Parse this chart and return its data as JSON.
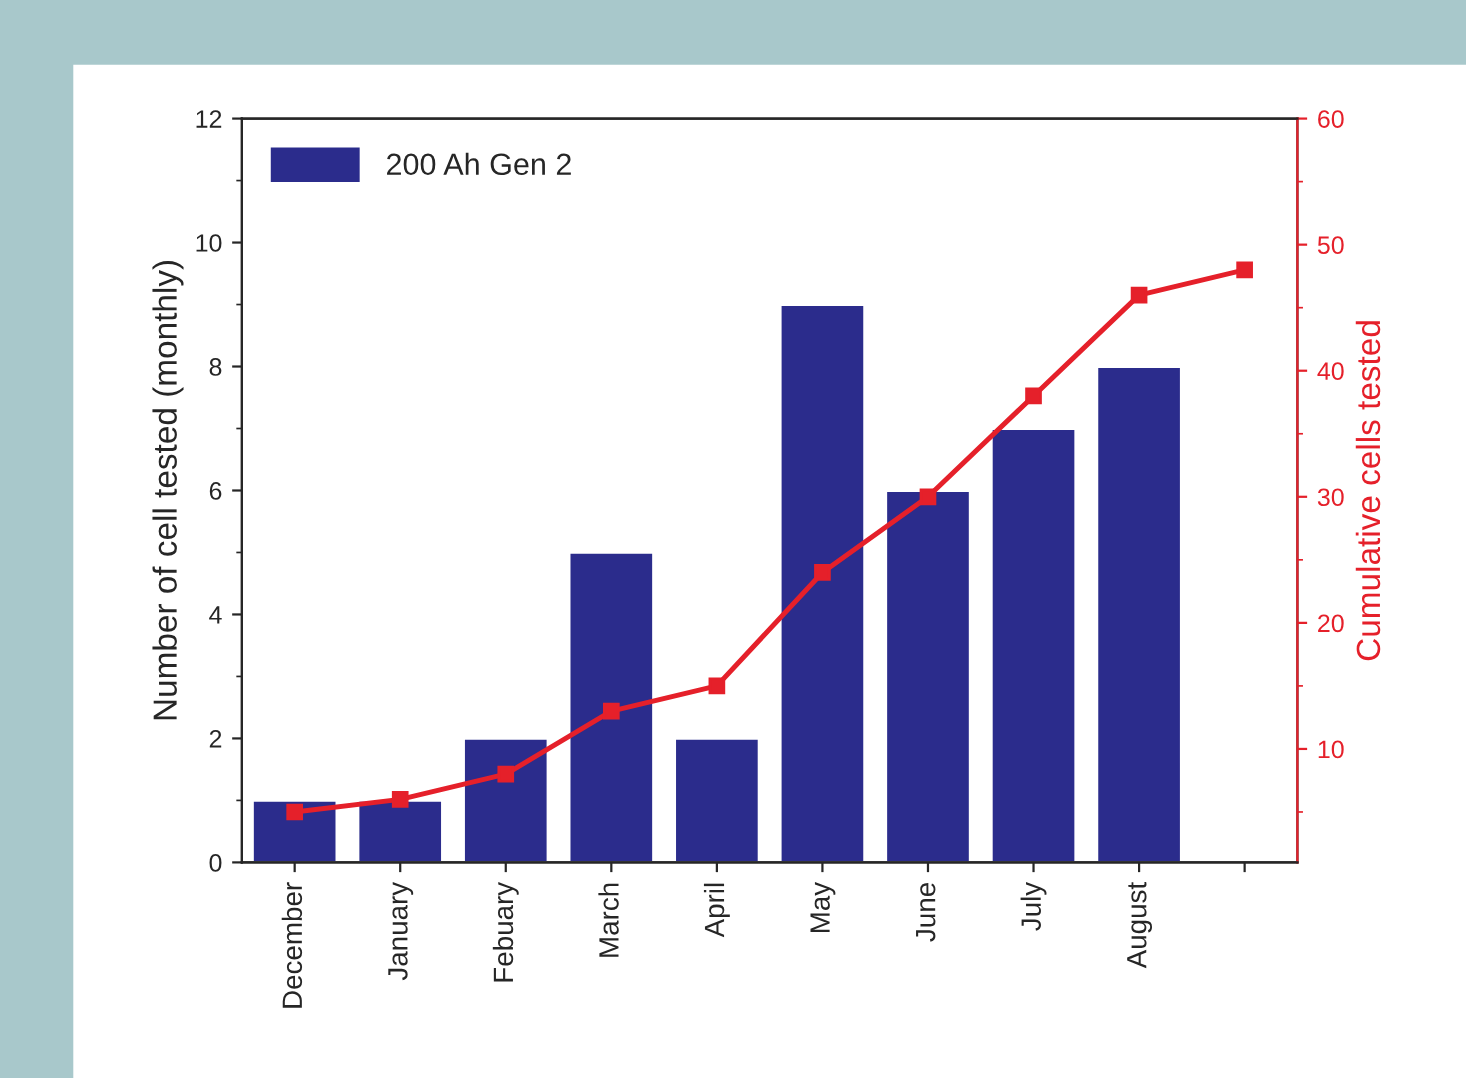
{
  "chart_data": {
    "type": "bar",
    "ylabel": "Number of cell tested (monthly)",
    "y2label": "Cumulative cells tested",
    "categories": [
      "December",
      "January",
      "Febuary",
      "March",
      "April",
      "May",
      "June",
      "July",
      "August",
      null
    ],
    "series": [
      {
        "name": "200 Ah Gen 2",
        "color": "#2b2c8c",
        "values": [
          1,
          1,
          2,
          5,
          2,
          9,
          6,
          7,
          8,
          null
        ]
      },
      {
        "type": "line",
        "axis": "y2",
        "color": "#e5202a",
        "marker": "square",
        "values": [
          5,
          6,
          8,
          13,
          15,
          24,
          30,
          38,
          46,
          48
        ]
      }
    ],
    "ylim": [
      0,
      12
    ],
    "yticks": [
      0,
      2,
      4,
      6,
      8,
      10,
      12
    ],
    "y2lim": [
      1,
      60
    ],
    "y2ticks": [
      10,
      20,
      30,
      40,
      50,
      60
    ],
    "grid": false,
    "legend": "top left"
  }
}
